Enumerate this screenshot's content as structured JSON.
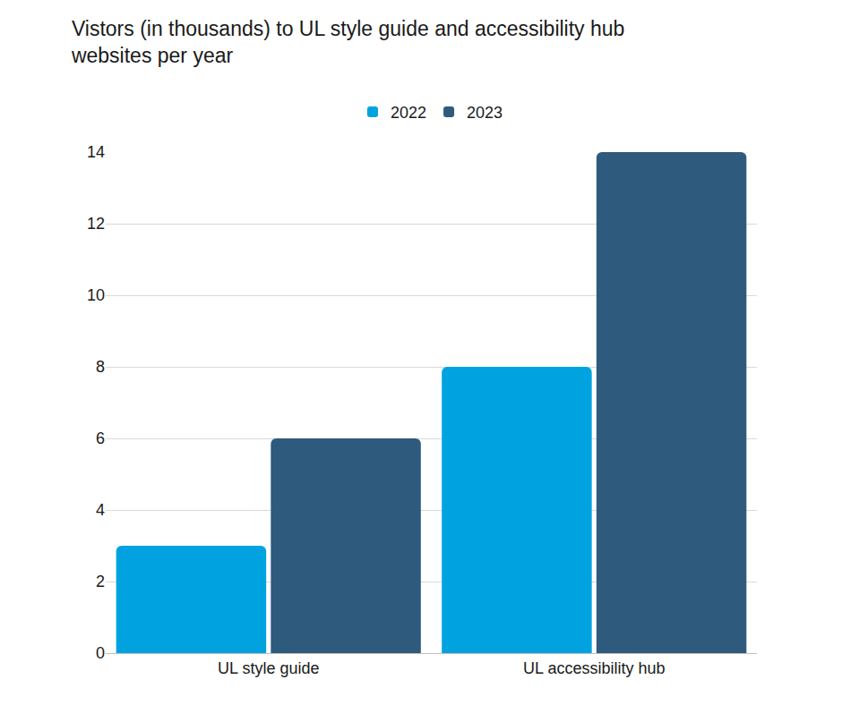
{
  "chart_data": {
    "type": "bar",
    "title": "Vistors (in thousands) to UL style guide and accessibility hub websites per year",
    "categories": [
      "UL style guide",
      "UL accessibility hub"
    ],
    "series": [
      {
        "name": "2022",
        "color": "#00a3e0",
        "values": [
          3,
          8
        ]
      },
      {
        "name": "2023",
        "color": "#2e5a7e",
        "values": [
          6,
          14
        ]
      }
    ],
    "ylim": [
      0,
      14
    ],
    "yticks": [
      0,
      2,
      4,
      6,
      8,
      10,
      12,
      14
    ],
    "grid": true,
    "legend": "top"
  }
}
